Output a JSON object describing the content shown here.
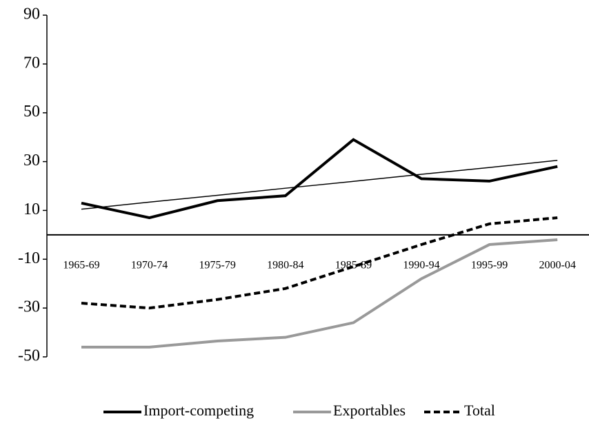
{
  "chart_data": {
    "type": "line",
    "categories": [
      "1965-69",
      "1970-74",
      "1975-79",
      "1980-84",
      "1985-89",
      "1990-94",
      "1995-99",
      "2000-04"
    ],
    "series": [
      {
        "name": "Import-competing",
        "color": "#000000",
        "values": [
          13,
          7,
          14,
          16,
          39,
          23,
          22,
          28
        ]
      },
      {
        "name": "Exportables",
        "color": "#999999",
        "values": [
          -46,
          -46,
          -43.5,
          -42,
          -36,
          -18,
          -4,
          -2
        ]
      },
      {
        "name": "Total",
        "color": "#000000",
        "dashed": true,
        "values": [
          -28,
          -30,
          -26.5,
          -22,
          -13,
          -4,
          4.5,
          7
        ]
      },
      {
        "color": "#000000",
        "values": [
          10.5,
          13.4,
          16.2,
          19.1,
          21.9,
          24.8,
          27.6,
          30.5
        ]
      }
    ],
    "ylim": [
      -50,
      90
    ],
    "yticks": [
      -50,
      -30,
      -10,
      10,
      30,
      50,
      70,
      90
    ],
    "grid": false
  }
}
